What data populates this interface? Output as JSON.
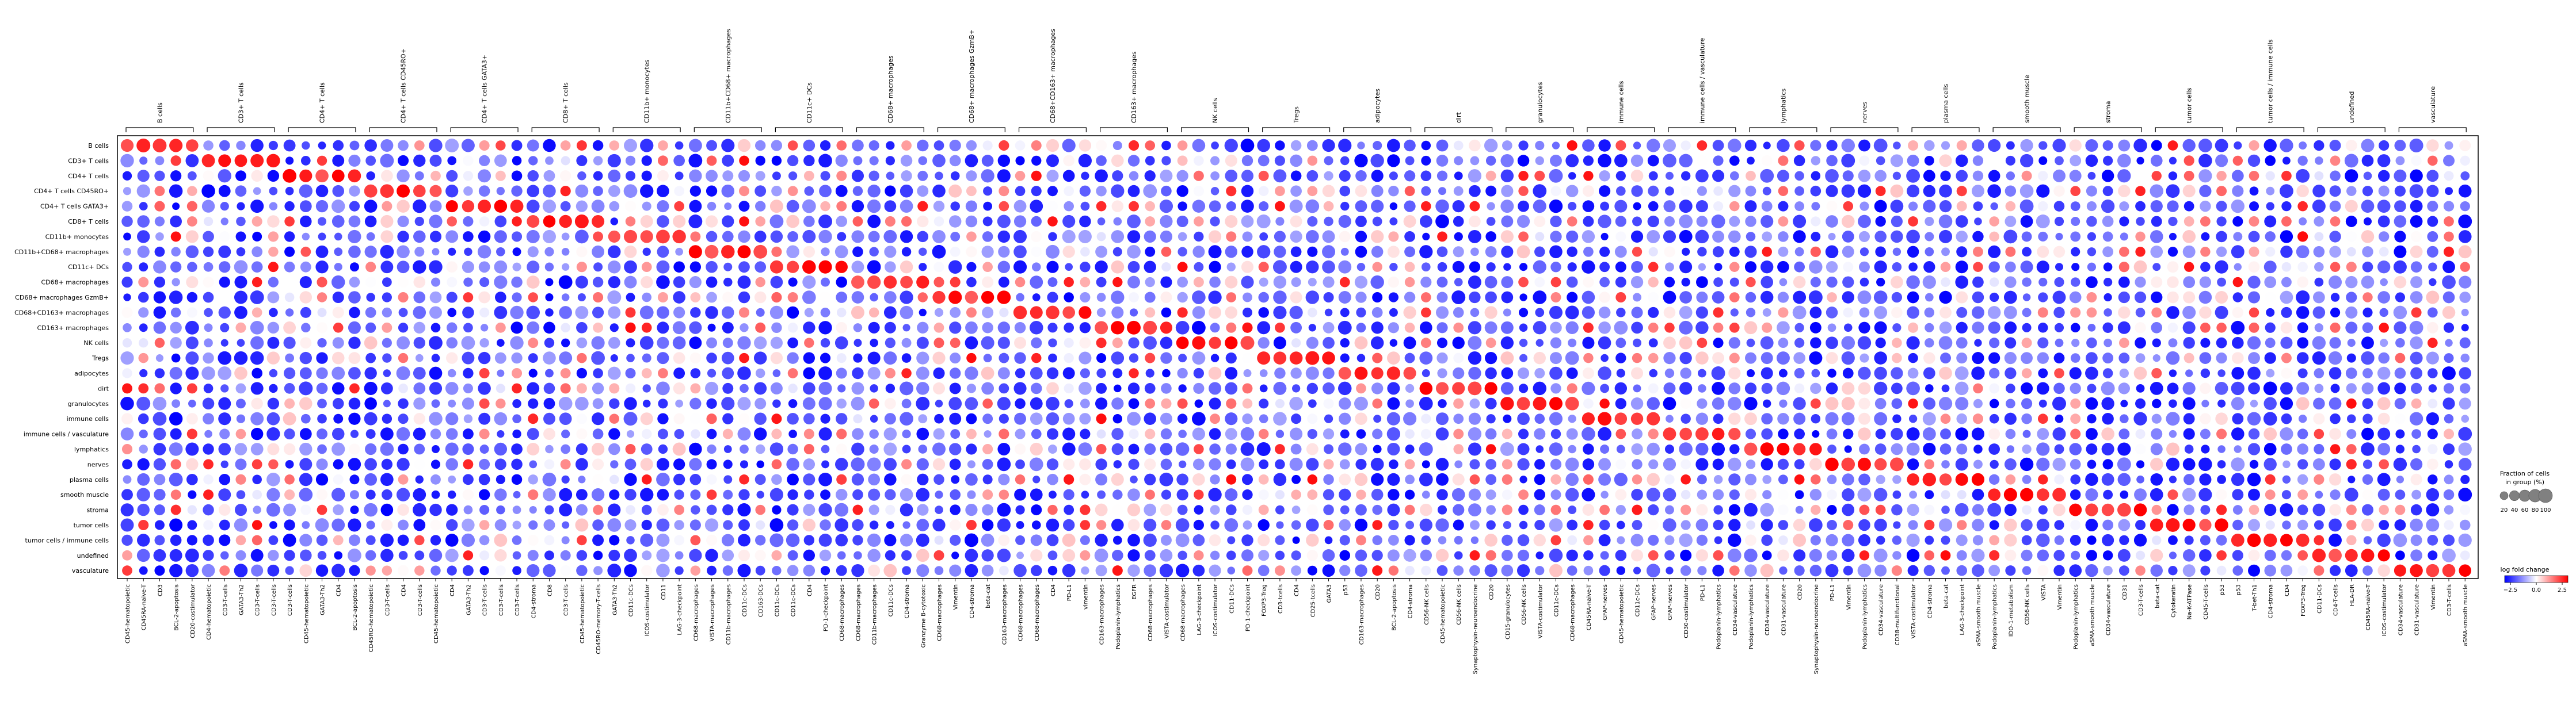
{
  "chart_data": {
    "type": "dotplot",
    "groups": [
      {
        "label": "B cells",
        "markers": [
          "CD45-hematopoietic",
          "CD45RA-naive-T",
          "CD3",
          "BCL-2-apoptosis",
          "CD20-costimulator"
        ]
      },
      {
        "label": "CD3+ T cells",
        "markers": [
          "CD4-hematopoietic",
          "CD3-T-cells",
          "GATA3-Th2",
          "CD3-T-cells",
          "CD3-T-cells"
        ]
      },
      {
        "label": "CD4+ T cells",
        "markers": [
          "CD3-T-cells",
          "CD45-hematopoietic",
          "GATA3-Th2",
          "CD4",
          "BCL-2-apoptosis"
        ]
      },
      {
        "label": "CD4+ T cells CD45RO+",
        "markers": [
          "CD45RO-hematopoietic",
          "CD3-T-cells",
          "CD4",
          "CD3-T-cells",
          "CD45-hematopoietic"
        ]
      },
      {
        "label": "CD4+ T cells GATA3+",
        "markers": [
          "CD4",
          "GATA3-Th2",
          "CD3-T-cells",
          "CD3-T-cells",
          "CD3-T-cells"
        ]
      },
      {
        "label": "CD8+ T cells",
        "markers": [
          "CD4-stroma",
          "CD8",
          "CD3-T-cells",
          "CD45-hematopoietic",
          "CD45RO-memory-T-cells"
        ]
      },
      {
        "label": "CD11b+ monocytes",
        "markers": [
          "GATA3-Th2",
          "CD11c-DCs",
          "ICOS-costimulator",
          "CD11",
          "LAG-3-checkpoint"
        ]
      },
      {
        "label": "CD11b+CD68+ macrophages",
        "markers": [
          "CD68-macrophages",
          "VISTA-macrophages",
          "CD11b-macrophages",
          "CD11c-DCs",
          "CD163-DCs"
        ]
      },
      {
        "label": "CD11c+ DCs",
        "markers": [
          "CD11c-DCs",
          "CD11c-DCs",
          "CD4",
          "PD-1-checkpoint",
          "CD68-macrophages"
        ]
      },
      {
        "label": "CD68+ macrophages",
        "markers": [
          "CD68-macrophages",
          "CD11b-macrophages",
          "CD11c-DCs",
          "CD4-stroma",
          "Granzyme B-cytotoxic"
        ]
      },
      {
        "label": "CD68+ macrophages GzmB+",
        "markers": [
          "CD68-macrophages",
          "Vimentin",
          "CD4-stroma",
          "beta-cat",
          "CD163-macrophages"
        ]
      },
      {
        "label": "CD68+CD163+ macrophages",
        "markers": [
          "CD68-macrophages",
          "CD68-macrophages",
          "CD4",
          "PD-L1",
          "vimentin"
        ]
      },
      {
        "label": "CD163+ macrophages",
        "markers": [
          "CD163-macrophages",
          "Podoplanin-lymphatics",
          "EGFR",
          "CD68-macrophages",
          "VISTA-costimulator"
        ]
      },
      {
        "label": "NK cells",
        "markers": [
          "CD68-macrophages",
          "LAG-3-checkpoint",
          "ICOS-costimulator",
          "CD11-DCs",
          "PD-1-checkpoint"
        ]
      },
      {
        "label": "Tregs",
        "markers": [
          "FOXP3-Treg",
          "CD3-tcells",
          "CD4",
          "CD25-tcells",
          "GATA3"
        ]
      },
      {
        "label": "adipocytes",
        "markers": [
          "p53",
          "CD163-macrophages",
          "CD20",
          "BCL-2-apoptosis",
          "CD4-stroma"
        ]
      },
      {
        "label": "dirt",
        "markers": [
          "CD56-NK cells",
          "CD45-hematopoietic",
          "CD56-NK cells",
          "Synaptophysin-neuroendocrine",
          "CD20"
        ]
      },
      {
        "label": "granulocytes",
        "markers": [
          "CD15-granulocytes",
          "CD56-NK cells",
          "VISTA-costimulator",
          "CD11c-DCs",
          "CD68-macrophages"
        ]
      },
      {
        "label": "immune cells",
        "markers": [
          "CD45RA-naive-T",
          "GFAP-nerves",
          "CD45-hematopoietic",
          "CD11c-DCs",
          "GFAP-nerves"
        ]
      },
      {
        "label": "immune cells / vasculature",
        "markers": [
          "GFAP-nerves",
          "CD30-costimulator",
          "PD-L1",
          "Podoplanin-lymphatics",
          "CD34-vasculature"
        ]
      },
      {
        "label": "lymphatics",
        "markers": [
          "Podoplanin-lymphatics",
          "CD34-vasculature",
          "CD31-vasculature",
          "CD20",
          "Synaptophysin-neuroendocrine"
        ]
      },
      {
        "label": "nerves",
        "markers": [
          "PD-L1",
          "Vimentin",
          "Podoplanin-lymphatics",
          "CD34-vasculature",
          "CD38-multifunctional"
        ]
      },
      {
        "label": "plasma cells",
        "markers": [
          "VISTA-costimulator",
          "CD4-stroma",
          "beta-cat",
          "LAG-3-checkpoint",
          "aSMA-smooth muscle"
        ]
      },
      {
        "label": "smooth muscle",
        "markers": [
          "Podoplanin-lymphatics",
          "IDO-1-metabolism",
          "CD56-NK cells",
          "VISTA",
          "Vimentin"
        ]
      },
      {
        "label": "stroma",
        "markers": [
          "Podoplanin-lymphatics",
          "aSMA-smooth muscle",
          "CD34-vasculature",
          "CD31",
          "CD3-T-cells"
        ]
      },
      {
        "label": "tumor cells",
        "markers": [
          "beta-cat",
          "Cytokeratin",
          "Na-K-ATPase",
          "CD45-T-cells",
          "p53"
        ]
      },
      {
        "label": "tumor cells / immune cells",
        "markers": [
          "p53",
          "T-bet-Th1",
          "CD4-stroma",
          "CD4",
          "FOXP3-Treg"
        ]
      },
      {
        "label": "undefined",
        "markers": [
          "CD11-DCs",
          "CD4-T-cells",
          "HLA-DR",
          "CD45RA-naive-T",
          "ICOS-costimulator"
        ]
      },
      {
        "label": "vasculature",
        "markers": [
          "CD34-vasculature",
          "CD31-vasculature",
          "Vimentin",
          "CD3-T-cells",
          "aSMA-smooth muscle"
        ]
      }
    ],
    "rows": [
      "B cells",
      "CD3+ T cells",
      "CD4+ T cells",
      "CD4+ T cells CD45RO+",
      "CD4+ T cells GATA3+",
      "CD8+ T cells",
      "CD11b+ monocytes",
      "CD11b+CD68+ macrophages",
      "CD11c+ DCs",
      "CD68+ macrophages",
      "CD68+ macrophages GzmB+",
      "CD68+CD163+ macrophages",
      "CD163+ macrophages",
      "NK cells",
      "Tregs",
      "adipocytes",
      "dirt",
      "granulocytes",
      "immune cells",
      "immune cells / vasculature",
      "lymphatics",
      "nerves",
      "plasma cells",
      "smooth muscle",
      "stroma",
      "tumor cells",
      "tumor cells / immune cells",
      "undefined",
      "vasculature"
    ],
    "value_rule": "diagonal blocks (row group == column group) show high positive log fold change and large fraction; off-diagonal blocks are mostly negative (blue)",
    "color_scale": {
      "label": "log fold change",
      "min": -2.5,
      "max": 2.5,
      "ticks": [
        "−2.5",
        "0.0",
        "2.5"
      ],
      "colors": [
        "#0000ff",
        "#ffffff",
        "#ff0000"
      ]
    },
    "size_legend": {
      "title_line1": "Fraction of cells",
      "title_line2": "in group (%)",
      "values": [
        20,
        40,
        60,
        80,
        100
      ]
    }
  }
}
